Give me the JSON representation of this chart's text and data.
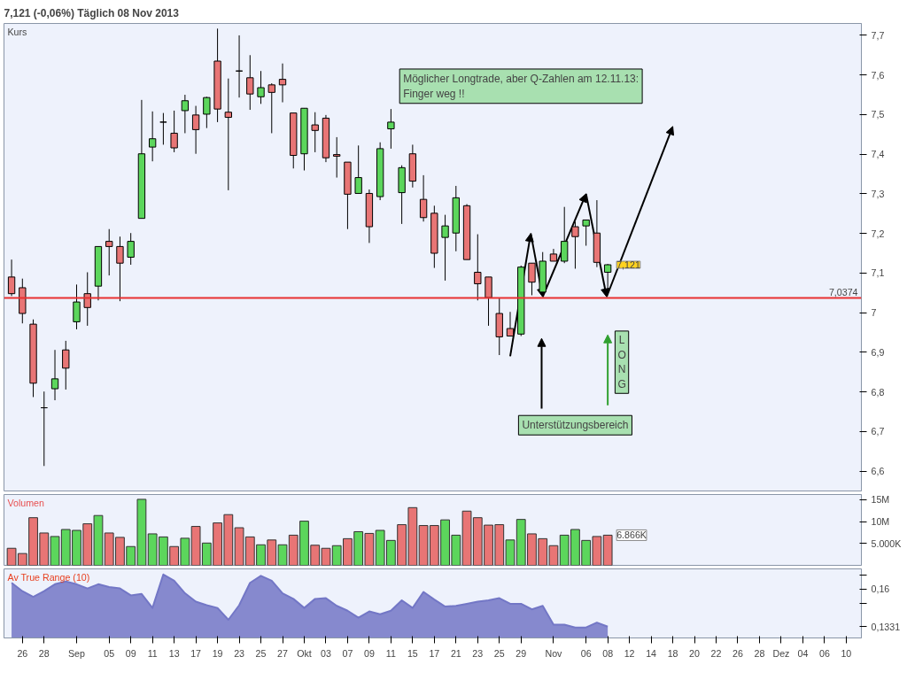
{
  "chart_data": [
    {
      "type": "candlestick",
      "title": "7,121 (-0,06%)   Täglich  08 Nov 2013",
      "ylabel": "Kurs",
      "categories": [
        null,
        "26",
        null,
        "28",
        null,
        null,
        "Sep",
        null,
        null,
        "05",
        null,
        "09",
        null,
        "11",
        null,
        "13",
        null,
        "17",
        null,
        "19",
        null,
        "23",
        null,
        "25",
        null,
        "27",
        null,
        "Okt",
        null,
        "03",
        null,
        "07",
        null,
        "09",
        null,
        "11",
        null,
        "15",
        null,
        "17",
        null,
        "21",
        null,
        "23",
        null,
        "25",
        null,
        "29",
        null,
        null,
        "Nov",
        null,
        null,
        "06",
        null,
        "08",
        null,
        "12",
        null,
        "14",
        null,
        "18",
        null,
        "20",
        null,
        "22",
        null,
        "26",
        null,
        "28",
        null,
        "Dez",
        null,
        "04",
        null,
        "06",
        null,
        "10"
      ],
      "ohlc": [
        [
          7.09,
          7.134,
          7.042,
          7.048
        ],
        [
          7.063,
          7.086,
          6.973,
          6.998
        ],
        [
          6.971,
          6.983,
          6.787,
          6.822
        ],
        [
          6.76,
          6.801,
          6.613,
          6.76
        ],
        [
          6.808,
          6.906,
          6.779,
          6.833
        ],
        [
          6.906,
          6.929,
          6.806,
          6.86
        ],
        [
          6.977,
          7.071,
          6.958,
          7.027
        ],
        [
          7.048,
          7.102,
          6.967,
          7.013
        ],
        [
          7.067,
          7.167,
          7.031,
          7.167
        ],
        [
          7.18,
          7.211,
          7.094,
          7.167
        ],
        [
          7.167,
          7.192,
          7.029,
          7.125
        ],
        [
          7.14,
          7.201,
          7.121,
          7.18
        ],
        [
          7.238,
          7.537,
          7.238,
          7.401
        ],
        [
          7.418,
          7.508,
          7.382,
          7.439
        ],
        [
          7.481,
          7.504,
          7.424,
          7.481
        ],
        [
          7.453,
          7.51,
          7.405,
          7.416
        ],
        [
          7.51,
          7.55,
          7.453,
          7.535
        ],
        [
          7.499,
          7.522,
          7.401,
          7.462
        ],
        [
          7.501,
          7.545,
          7.466,
          7.543
        ],
        [
          7.635,
          7.717,
          7.481,
          7.514
        ],
        [
          7.506,
          7.591,
          7.309,
          7.493
        ],
        [
          7.61,
          7.7,
          7.543,
          7.61
        ],
        [
          7.593,
          7.65,
          7.512,
          7.552
        ],
        [
          7.545,
          7.61,
          7.527,
          7.568
        ],
        [
          7.575,
          7.579,
          7.453,
          7.556
        ],
        [
          7.589,
          7.629,
          7.531,
          7.575
        ],
        [
          7.504,
          7.504,
          7.364,
          7.397
        ],
        [
          7.401,
          7.516,
          7.359,
          7.516
        ],
        [
          7.474,
          7.506,
          7.405,
          7.46
        ],
        [
          7.491,
          7.499,
          7.38,
          7.391
        ],
        [
          7.399,
          7.443,
          7.341,
          7.395
        ],
        [
          7.38,
          7.38,
          7.211,
          7.299
        ],
        [
          7.301,
          7.422,
          7.301,
          7.341
        ],
        [
          7.301,
          7.311,
          7.176,
          7.217
        ],
        [
          7.293,
          7.43,
          7.284,
          7.414
        ],
        [
          7.464,
          7.514,
          7.414,
          7.481
        ],
        [
          7.303,
          7.372,
          7.224,
          7.366
        ],
        [
          7.401,
          7.424,
          7.316,
          7.332
        ],
        [
          7.286,
          7.347,
          7.23,
          7.24
        ],
        [
          7.251,
          7.27,
          7.113,
          7.15
        ],
        [
          7.19,
          7.247,
          7.081,
          7.219
        ],
        [
          7.201,
          7.32,
          7.155,
          7.29
        ],
        [
          7.27,
          7.274,
          7.134,
          7.134
        ],
        [
          7.102,
          7.198,
          7.031,
          7.073
        ],
        [
          7.09,
          7.09,
          6.967,
          7.038
        ],
        [
          6.998,
          7.038,
          6.893,
          6.939
        ],
        [
          6.96,
          7.002,
          6.941,
          6.941
        ],
        [
          6.946,
          7.119,
          6.941,
          7.115
        ],
        [
          7.125,
          7.125,
          7.044,
          7.077
        ],
        [
          7.052,
          7.153,
          7.05,
          7.13
        ],
        [
          7.148,
          7.161,
          7.13,
          7.13
        ],
        [
          7.13,
          7.267,
          7.125,
          7.18
        ],
        [
          7.217,
          7.23,
          7.111,
          7.192
        ],
        [
          7.219,
          7.234,
          7.169,
          7.234
        ],
        [
          7.201,
          7.284,
          7.115,
          7.127
        ],
        [
          7.102,
          7.123,
          7.048,
          7.121
        ],
        null,
        null,
        null,
        null,
        null,
        null,
        null,
        null,
        null,
        null,
        null,
        null,
        null,
        null,
        null,
        null,
        null,
        null,
        null,
        null,
        null,
        null
      ],
      "colors": [
        "#e87575",
        "#e87575",
        "#e87575",
        "#000000",
        "#5cd65c",
        "#e87575",
        "#5cd65c",
        "#e87575",
        "#5cd65c",
        "#e87575",
        "#e87575",
        "#5cd65c",
        "#5cd65c",
        "#5cd65c",
        "#000000",
        "#e87575",
        "#5cd65c",
        "#e87575",
        "#5cd65c",
        "#e87575",
        "#e87575",
        "#000000",
        "#e87575",
        "#5cd65c",
        "#e87575",
        "#e87575",
        "#e87575",
        "#5cd65c",
        "#e87575",
        "#e87575",
        "#e87575",
        "#e87575",
        "#5cd65c",
        "#e87575",
        "#5cd65c",
        "#5cd65c",
        "#5cd65c",
        "#e87575",
        "#e87575",
        "#e87575",
        "#5cd65c",
        "#5cd65c",
        "#e87575",
        "#e87575",
        "#e87575",
        "#e87575",
        "#e87575",
        "#5cd65c",
        "#e87575",
        "#5cd65c",
        "#e87575",
        "#5cd65c",
        "#e87575",
        "#5cd65c",
        "#e87575",
        "#5cd65c",
        null,
        null,
        null,
        null,
        null,
        null,
        null,
        null,
        null,
        null,
        null,
        null,
        null,
        null,
        null,
        null,
        null,
        null,
        null,
        null,
        null,
        null
      ],
      "ylim": [
        6.55,
        7.73
      ],
      "yticks": [
        {
          "value": 6.6,
          "label": "6,6"
        },
        {
          "value": 6.7,
          "label": "6,7"
        },
        {
          "value": 6.8,
          "label": "6,8"
        },
        {
          "value": 6.9,
          "label": "6,9"
        },
        {
          "value": 7,
          "label": "7"
        },
        {
          "value": 7.1,
          "label": "7,1"
        },
        {
          "value": 7.2,
          "label": "7,2"
        },
        {
          "value": 7.3,
          "label": "7,3"
        },
        {
          "value": 7.4,
          "label": "7,4"
        },
        {
          "value": 7.5,
          "label": "7,5"
        },
        {
          "value": 7.6,
          "label": "7,6"
        },
        {
          "value": 7.7,
          "label": "7,7"
        }
      ],
      "ref_lines": [
        {
          "axis": "y",
          "value": 7.0374,
          "label": "7,0374",
          "color": "#e83030"
        }
      ],
      "annotations": [
        "Möglicher Longtrade, aber Q-Zahlen am 12.11.13: Finger weg !!",
        "Unterstützungsbereich",
        "LONG",
        "7,121"
      ],
      "tick_labels": "y"
    },
    {
      "type": "bar",
      "title": "Volumen",
      "categories": [
        null,
        "26",
        null,
        "28",
        null,
        null,
        "Sep",
        null,
        null,
        "05",
        null,
        "09",
        null,
        "11",
        null,
        "13",
        null,
        "17",
        null,
        "19",
        null,
        "23",
        null,
        "25",
        null,
        "27",
        null,
        "Okt",
        null,
        "03",
        null,
        "07",
        null,
        "09",
        null,
        "11",
        null,
        "15",
        null,
        "17",
        null,
        "21",
        null,
        "23",
        null,
        "25",
        null,
        "29",
        null,
        null,
        "Nov",
        null,
        null,
        "06",
        null,
        "08",
        null,
        "12",
        null,
        "14",
        null,
        "18",
        null,
        "20",
        null,
        "22",
        null,
        "26",
        null,
        "28",
        null,
        "Dez",
        null,
        "04",
        null,
        "06",
        null,
        "10"
      ],
      "values": [
        3.9,
        2.7,
        10.9,
        7.4,
        6.6,
        8.2,
        8.0,
        9.5,
        11.4,
        7.4,
        6.4,
        4.3,
        15.1,
        7.2,
        6.5,
        4.3,
        6.2,
        8.9,
        5.1,
        9.7,
        11.6,
        8.6,
        6.5,
        4.7,
        5.8,
        4.7,
        6.9,
        10.1,
        4.6,
        3.9,
        4.5,
        6.1,
        7.7,
        7.3,
        8.0,
        5.7,
        9.3,
        13.2,
        9.1,
        9.1,
        10.4,
        6.9,
        12.4,
        10.9,
        9.2,
        9.3,
        5.8,
        10.5,
        7.2,
        6.1,
        4.5,
        6.9,
        8.2,
        5.7,
        6.6,
        6.9,
        null,
        null,
        null,
        null,
        null,
        null,
        null,
        null,
        null,
        null,
        null,
        null,
        null,
        null,
        null,
        null,
        null,
        null,
        null,
        null,
        null,
        null
      ],
      "colors": [
        "#e87575",
        "#e87575",
        "#e87575",
        "#e87575",
        "#5cd65c",
        "#5cd65c",
        "#5cd65c",
        "#e87575",
        "#5cd65c",
        "#e87575",
        "#e87575",
        "#5cd65c",
        "#5cd65c",
        "#5cd65c",
        "#5cd65c",
        "#e87575",
        "#5cd65c",
        "#e87575",
        "#5cd65c",
        "#e87575",
        "#e87575",
        "#e87575",
        "#e87575",
        "#5cd65c",
        "#e87575",
        "#5cd65c",
        "#e87575",
        "#5cd65c",
        "#e87575",
        "#e87575",
        "#5cd65c",
        "#e87575",
        "#5cd65c",
        "#e87575",
        "#5cd65c",
        "#5cd65c",
        "#e87575",
        "#e87575",
        "#e87575",
        "#e87575",
        "#5cd65c",
        "#5cd65c",
        "#e87575",
        "#e87575",
        "#e87575",
        "#e87575",
        "#5cd65c",
        "#5cd65c",
        "#e87575",
        "#e87575",
        "#e87575",
        "#5cd65c",
        "#5cd65c",
        "#5cd65c",
        "#e87575",
        "#e87575",
        null,
        null,
        null,
        null,
        null,
        null,
        null,
        null,
        null,
        null,
        null,
        null,
        null,
        null,
        null,
        null,
        null,
        null,
        null,
        null,
        null,
        null
      ],
      "ylim": [
        0,
        16.2
      ],
      "yticks": [
        {
          "value": 5,
          "label": "5.000K"
        },
        {
          "value": 10,
          "label": "10M"
        },
        {
          "value": 15,
          "label": "15M"
        }
      ],
      "annotations": [
        "6.866K"
      ],
      "tick_labels": "y"
    },
    {
      "type": "area",
      "title": "Av True Range (10)",
      "categories": [
        null,
        "26",
        null,
        "28",
        null,
        null,
        "Sep",
        null,
        null,
        "05",
        null,
        "09",
        null,
        "11",
        null,
        "13",
        null,
        "17",
        null,
        "19",
        null,
        "23",
        null,
        "25",
        null,
        "27",
        null,
        "Okt",
        null,
        "03",
        null,
        "07",
        null,
        "09",
        null,
        "11",
        null,
        "15",
        null,
        "17",
        null,
        "21",
        null,
        "23",
        null,
        "25",
        null,
        "29",
        null,
        null,
        "Nov",
        null,
        null,
        "06",
        null,
        "08",
        null,
        "12",
        null,
        "14",
        null,
        "18",
        null,
        "20",
        null,
        "22",
        null,
        "26",
        null,
        "28",
        null,
        "Dez",
        null,
        "04",
        null,
        "06",
        null,
        "10"
      ],
      "series": [
        {
          "color": "#7377c6",
          "values": [
            0.1645,
            0.1585,
            0.1545,
            0.1585,
            0.1635,
            0.1655,
            0.1635,
            0.1605,
            0.1635,
            0.1615,
            0.1605,
            0.1555,
            0.1565,
            0.1465,
            0.1705,
            0.166,
            0.157,
            0.151,
            0.1485,
            0.1465,
            0.138,
            0.1485,
            0.1645,
            0.1695,
            0.166,
            0.157,
            0.153,
            0.1465,
            0.153,
            0.1535,
            0.148,
            0.1445,
            0.1395,
            0.144,
            0.142,
            0.1445,
            0.152,
            0.1465,
            0.158,
            0.1525,
            0.1475,
            0.148,
            0.1495,
            0.151,
            0.152,
            0.1535,
            0.1495,
            0.1495,
            0.1455,
            0.148,
            0.1345,
            0.1345,
            0.1325,
            0.1325,
            0.136,
            0.1331,
            null,
            null,
            null,
            null,
            null,
            null,
            null,
            null,
            null,
            null,
            null,
            null,
            null,
            null,
            null,
            null,
            null,
            null,
            null,
            null,
            null,
            null
          ]
        }
      ],
      "ylim": [
        0.125,
        0.1745
      ],
      "yticks": [
        {
          "value": 0.1331,
          "label": "0,1331"
        },
        {
          "value": 0.15,
          "label": null
        },
        {
          "value": 0.16,
          "label": "0,16"
        },
        {
          "value": 0.17,
          "label": null
        }
      ]
    }
  ]
}
